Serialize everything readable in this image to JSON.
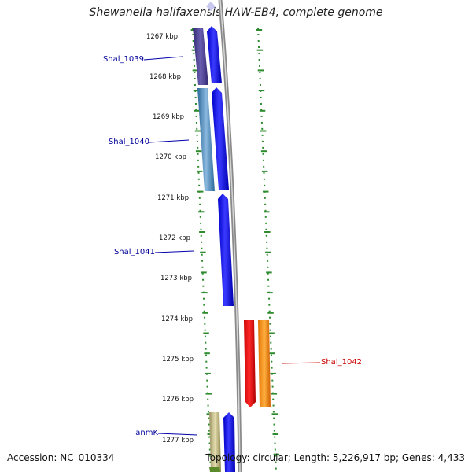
{
  "map": {
    "title": "Shewanella halifaxensis HAW-EB4, complete genome",
    "accession_text": "Accession: NC_010334",
    "summary_text": "Topology: circular; Length: 5,226,917 bp; Genes: 4,433",
    "scale": {
      "labels": [
        "1267 kbp",
        "1268 kbp",
        "1269 kbp",
        "1270 kbp",
        "1271 kbp",
        "1272 kbp",
        "1273 kbp",
        "1274 kbp",
        "1275 kbp",
        "1276 kbp",
        "1277 kbp"
      ]
    },
    "genes": [
      {
        "name": "Shal_1039",
        "color": "#000099"
      },
      {
        "name": "Shal_1040",
        "color": "#000099"
      },
      {
        "name": "Shal_1041",
        "color": "#000099"
      },
      {
        "name": "Shal_1042",
        "color": "#cc0000"
      },
      {
        "name": "anmK",
        "color": "#000099"
      }
    ],
    "feature_colors": {
      "cds_forward": "#0000ee",
      "feature_dark": "#4b3f8f",
      "feature_teal": "#4a8bbf",
      "cds_reverse": "#ee0000",
      "feature_orange": "#ff8c00",
      "feature_olive": "#b8b07a",
      "feature_green": "#5a8a2a",
      "backbone": "#8a8a8a",
      "tick": "#2e8b2e"
    }
  }
}
